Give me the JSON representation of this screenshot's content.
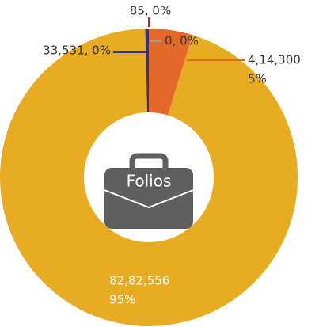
{
  "chart_data": {
    "type": "donut",
    "center_label": "Folios",
    "categories": [
      null,
      null,
      null,
      null,
      null
    ],
    "values": [
      85,
      0,
      414300,
      8282556,
      33531
    ],
    "value_labels": [
      [
        "85, 0%"
      ],
      [
        "0, 0%"
      ],
      [
        "4,14,300",
        "5%"
      ],
      [
        "82,82,556",
        "95%"
      ],
      [
        "33,531, 0%"
      ]
    ],
    "colors": [
      "#c8202c",
      "#9a9a9a",
      "#e2692a",
      "#e8ac22",
      "#2e3585"
    ]
  }
}
